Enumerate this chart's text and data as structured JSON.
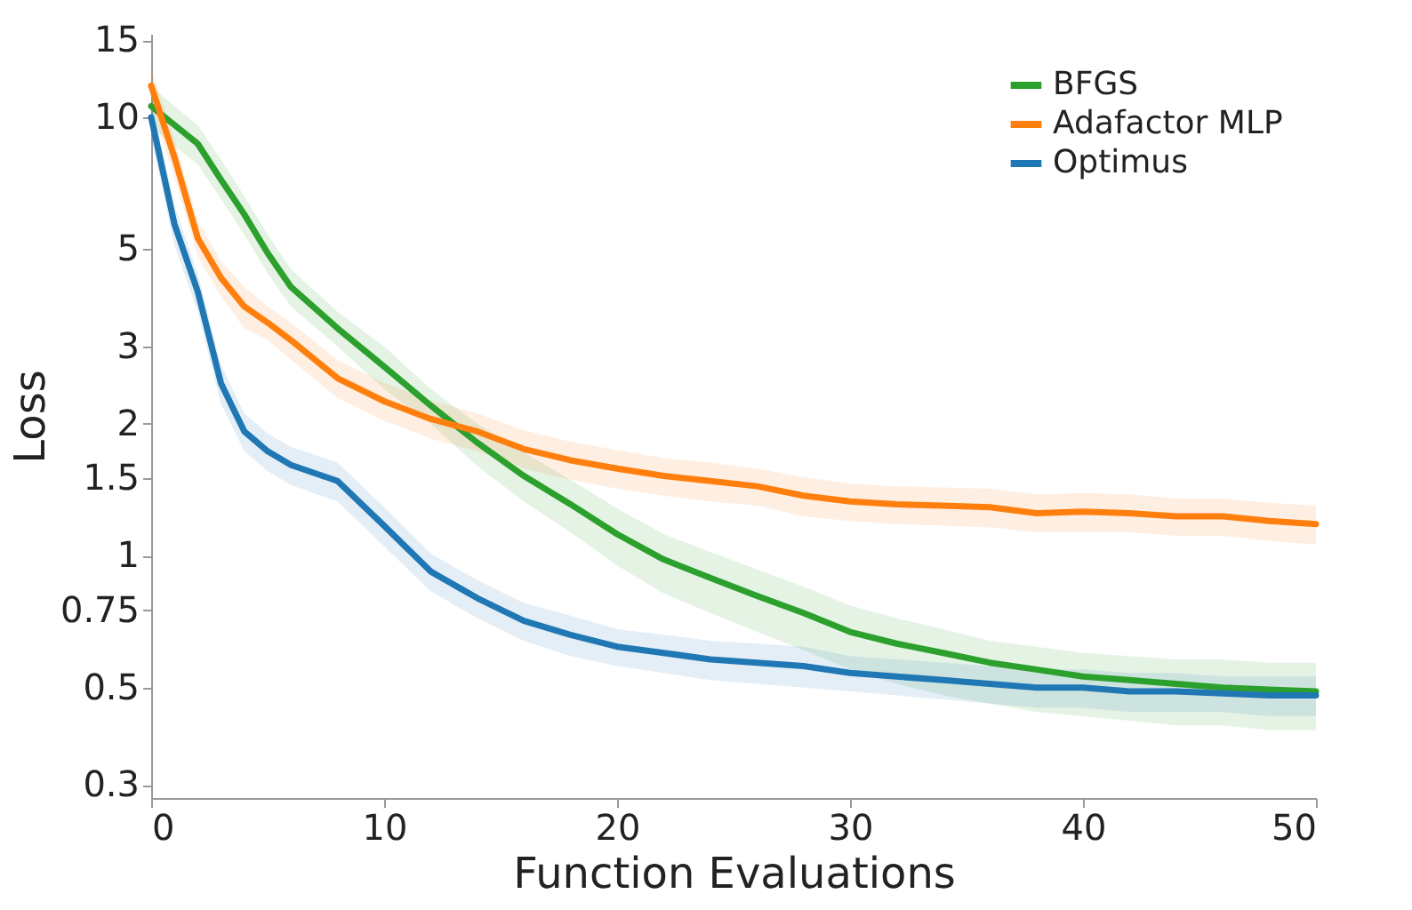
{
  "chart_data": {
    "type": "line",
    "xlabel": "Function Evaluations",
    "ylabel": "Loss",
    "xlim": [
      0,
      50
    ],
    "xticks": [
      0,
      10,
      20,
      30,
      40,
      50
    ],
    "ylim": [
      0.28,
      15.5
    ],
    "yticks": [
      0.3,
      0.5,
      0.75,
      1,
      1.5,
      2,
      3,
      5,
      10,
      15
    ],
    "log": "y",
    "grid": false,
    "legend": "top right",
    "line_style": "solid",
    "series": [
      {
        "name": "BFGS",
        "color": "#2ca02c",
        "x": [
          0,
          1,
          2,
          3,
          4,
          5,
          6,
          8,
          10,
          12,
          14,
          16,
          18,
          20,
          22,
          24,
          26,
          28,
          30,
          32,
          34,
          36,
          38,
          40,
          42,
          44,
          46,
          48,
          50
        ],
        "values": [
          10.6,
          9.6,
          8.7,
          7.2,
          6.0,
          4.9,
          4.1,
          3.3,
          2.7,
          2.2,
          1.81,
          1.52,
          1.31,
          1.12,
          0.98,
          0.89,
          0.81,
          0.74,
          0.67,
          0.63,
          0.6,
          0.57,
          0.55,
          0.53,
          0.52,
          0.51,
          0.5,
          0.495,
          0.49
        ],
        "lower": [
          9.5,
          8.6,
          7.8,
          6.5,
          5.4,
          4.4,
          3.7,
          3.0,
          2.4,
          2.0,
          1.6,
          1.33,
          1.13,
          0.95,
          0.82,
          0.74,
          0.67,
          0.61,
          0.55,
          0.51,
          0.48,
          0.46,
          0.44,
          0.43,
          0.42,
          0.41,
          0.41,
          0.4,
          0.4
        ],
        "upper": [
          11.8,
          10.6,
          9.6,
          8.0,
          6.6,
          5.4,
          4.5,
          3.6,
          3.0,
          2.4,
          2.0,
          1.72,
          1.49,
          1.28,
          1.12,
          1.02,
          0.93,
          0.85,
          0.77,
          0.72,
          0.68,
          0.64,
          0.62,
          0.6,
          0.59,
          0.58,
          0.58,
          0.57,
          0.57
        ]
      },
      {
        "name": "Adafactor MLP",
        "color": "#ff7f0e",
        "x": [
          0,
          1,
          2,
          3,
          4,
          5,
          6,
          8,
          10,
          12,
          14,
          16,
          18,
          20,
          22,
          24,
          26,
          28,
          30,
          32,
          34,
          36,
          38,
          40,
          42,
          44,
          46,
          48,
          50
        ],
        "values": [
          11.8,
          8.1,
          5.3,
          4.3,
          3.7,
          3.4,
          3.1,
          2.54,
          2.25,
          2.05,
          1.92,
          1.75,
          1.65,
          1.58,
          1.52,
          1.48,
          1.44,
          1.37,
          1.33,
          1.31,
          1.3,
          1.29,
          1.25,
          1.26,
          1.25,
          1.23,
          1.23,
          1.2,
          1.18
        ],
        "lower": [
          10.6,
          7.3,
          4.8,
          3.9,
          3.3,
          3.1,
          2.8,
          2.29,
          2.03,
          1.85,
          1.73,
          1.58,
          1.49,
          1.42,
          1.37,
          1.33,
          1.3,
          1.23,
          1.2,
          1.18,
          1.17,
          1.16,
          1.13,
          1.13,
          1.13,
          1.11,
          1.11,
          1.08,
          1.06
        ],
        "upper": [
          13.0,
          8.9,
          5.8,
          4.7,
          4.1,
          3.7,
          3.4,
          2.79,
          2.48,
          2.26,
          2.11,
          1.93,
          1.82,
          1.74,
          1.67,
          1.63,
          1.58,
          1.51,
          1.46,
          1.44,
          1.43,
          1.42,
          1.38,
          1.39,
          1.38,
          1.35,
          1.35,
          1.32,
          1.3
        ]
      },
      {
        "name": "Optimus",
        "color": "#1f77b4",
        "x": [
          0,
          1,
          2,
          3,
          4,
          5,
          6,
          8,
          10,
          12,
          14,
          16,
          18,
          20,
          22,
          24,
          26,
          28,
          30,
          32,
          34,
          36,
          38,
          40,
          42,
          44,
          46,
          48,
          50
        ],
        "values": [
          10.0,
          5.7,
          4.0,
          2.47,
          1.92,
          1.73,
          1.61,
          1.48,
          1.17,
          0.92,
          0.8,
          0.71,
          0.66,
          0.62,
          0.6,
          0.58,
          0.57,
          0.56,
          0.54,
          0.53,
          0.52,
          0.51,
          0.5,
          0.5,
          0.49,
          0.49,
          0.485,
          0.48,
          0.48
        ],
        "lower": [
          9.0,
          5.1,
          3.6,
          2.22,
          1.73,
          1.56,
          1.45,
          1.33,
          1.05,
          0.83,
          0.72,
          0.64,
          0.59,
          0.56,
          0.54,
          0.52,
          0.51,
          0.5,
          0.49,
          0.48,
          0.47,
          0.46,
          0.45,
          0.45,
          0.44,
          0.44,
          0.44,
          0.43,
          0.43
        ],
        "upper": [
          11.0,
          6.3,
          4.4,
          2.72,
          2.11,
          1.9,
          1.77,
          1.63,
          1.29,
          1.01,
          0.88,
          0.78,
          0.73,
          0.68,
          0.66,
          0.64,
          0.63,
          0.62,
          0.59,
          0.58,
          0.57,
          0.56,
          0.55,
          0.55,
          0.54,
          0.54,
          0.53,
          0.53,
          0.53
        ]
      }
    ]
  }
}
